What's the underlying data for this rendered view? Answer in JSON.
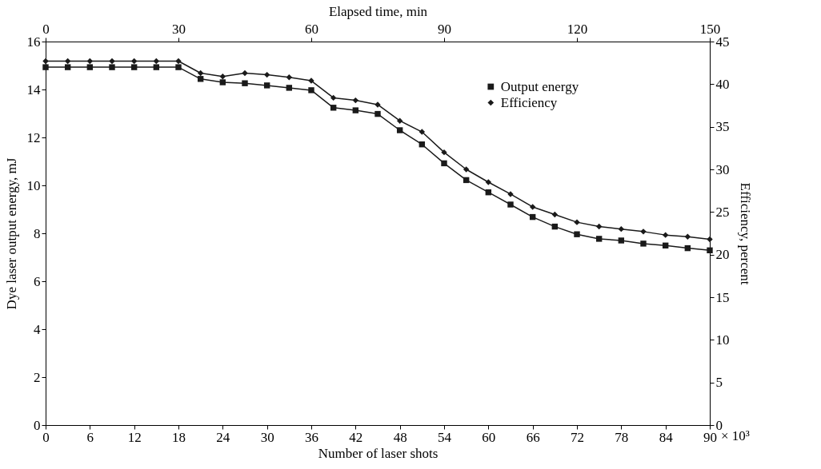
{
  "chart_data": {
    "type": "line",
    "xlabel": "Number of laser shots",
    "ylabel": "Dye laser output energy, mJ",
    "y2label": "Efficiency, percent",
    "x2label": "Elapsed time, min",
    "x": [
      0,
      3,
      6,
      9,
      12,
      15,
      18,
      21,
      24,
      27,
      30,
      33,
      36,
      39,
      42,
      45,
      48,
      51,
      54,
      57,
      60,
      63,
      66,
      69,
      72,
      75,
      78,
      81,
      84,
      87,
      90
    ],
    "xlim": [
      0,
      90
    ],
    "xticks": [
      0,
      6,
      12,
      18,
      24,
      30,
      36,
      42,
      48,
      54,
      60,
      66,
      72,
      78,
      84,
      90
    ],
    "x2lim": [
      0,
      150
    ],
    "x2ticks": [
      0,
      30,
      60,
      90,
      120,
      150
    ],
    "ylim": [
      0,
      16
    ],
    "yticks": [
      0,
      2,
      4,
      6,
      8,
      10,
      12,
      14,
      16
    ],
    "y2lim": [
      0,
      45
    ],
    "y2ticks": [
      0,
      5,
      10,
      15,
      20,
      25,
      30,
      35,
      40,
      45
    ],
    "series": [
      {
        "name": "Output energy",
        "color": "#1a1a1a",
        "marker": "square",
        "values": [
          14.93,
          14.93,
          14.93,
          14.93,
          14.93,
          14.93,
          14.93,
          14.44,
          14.3,
          14.26,
          14.17,
          14.07,
          13.97,
          13.24,
          13.13,
          12.98,
          12.3,
          11.71,
          10.92,
          10.22,
          9.71,
          9.2,
          8.68,
          8.28,
          7.96,
          7.77,
          7.7,
          7.57,
          7.49,
          7.38,
          7.29
        ]
      },
      {
        "name": "Efficiency",
        "color": "#1a1a1a",
        "marker": "diamond",
        "axis": "y2",
        "values": [
          42.7,
          42.7,
          42.7,
          42.7,
          42.7,
          42.7,
          42.7,
          41.3,
          40.9,
          41.3,
          41.1,
          40.8,
          40.4,
          38.4,
          38.1,
          37.6,
          35.7,
          34.4,
          32.0,
          30.0,
          28.5,
          27.1,
          25.6,
          24.7,
          23.8,
          23.3,
          23.0,
          22.7,
          22.3,
          22.1,
          21.8
        ]
      }
    ],
    "annotations": [
      "× 10³"
    ],
    "line_style": "solid",
    "grid": false,
    "legend": "top right"
  }
}
